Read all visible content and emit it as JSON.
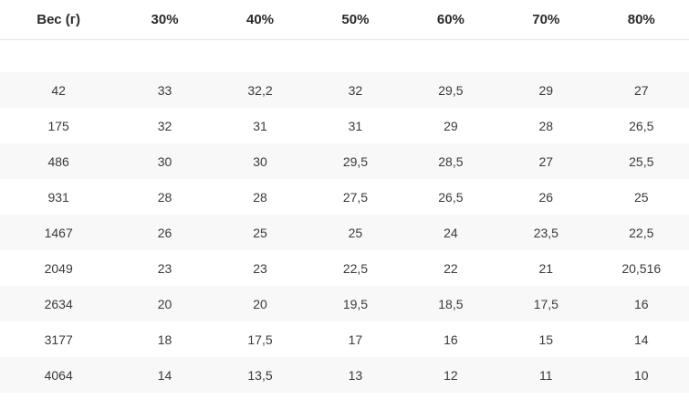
{
  "chart_data": {
    "type": "table",
    "title": "",
    "columns": [
      "Вес (г)",
      "30%",
      "40%",
      "50%",
      "60%",
      "70%",
      "80%"
    ],
    "rows": [
      [
        "42",
        "33",
        "32,2",
        "32",
        "29,5",
        "29",
        "27"
      ],
      [
        "175",
        "32",
        "31",
        "31",
        "29",
        "28",
        "26,5"
      ],
      [
        "486",
        "30",
        "30",
        "29,5",
        "28,5",
        "27",
        "25,5"
      ],
      [
        "931",
        "28",
        "28",
        "27,5",
        "26,5",
        "26",
        "25"
      ],
      [
        "1467",
        "26",
        "25",
        "25",
        "24",
        "23,5",
        "22,5"
      ],
      [
        "2049",
        "23",
        "23",
        "22,5",
        "22",
        "21",
        "20,516"
      ],
      [
        "2634",
        "20",
        "20",
        "19,5",
        "18,5",
        "17,5",
        "16"
      ],
      [
        "3177",
        "18",
        "17,5",
        "17",
        "16",
        "15",
        "14"
      ],
      [
        "4064",
        "14",
        "13,5",
        "13",
        "12",
        "11",
        "10"
      ]
    ],
    "layout": {
      "header_align": "center",
      "cell_align": "center",
      "zebra_striping": true,
      "first_data_row_striped": true,
      "empty_spacer_row_below_header": true
    }
  },
  "colors": {
    "stripe_row_background": "#f8f8f8",
    "header_border_bottom": "#e2e2e2",
    "header_text": "#2a2a2a",
    "cell_text": "#3a3a3a",
    "page_background": "#ffffff"
  }
}
